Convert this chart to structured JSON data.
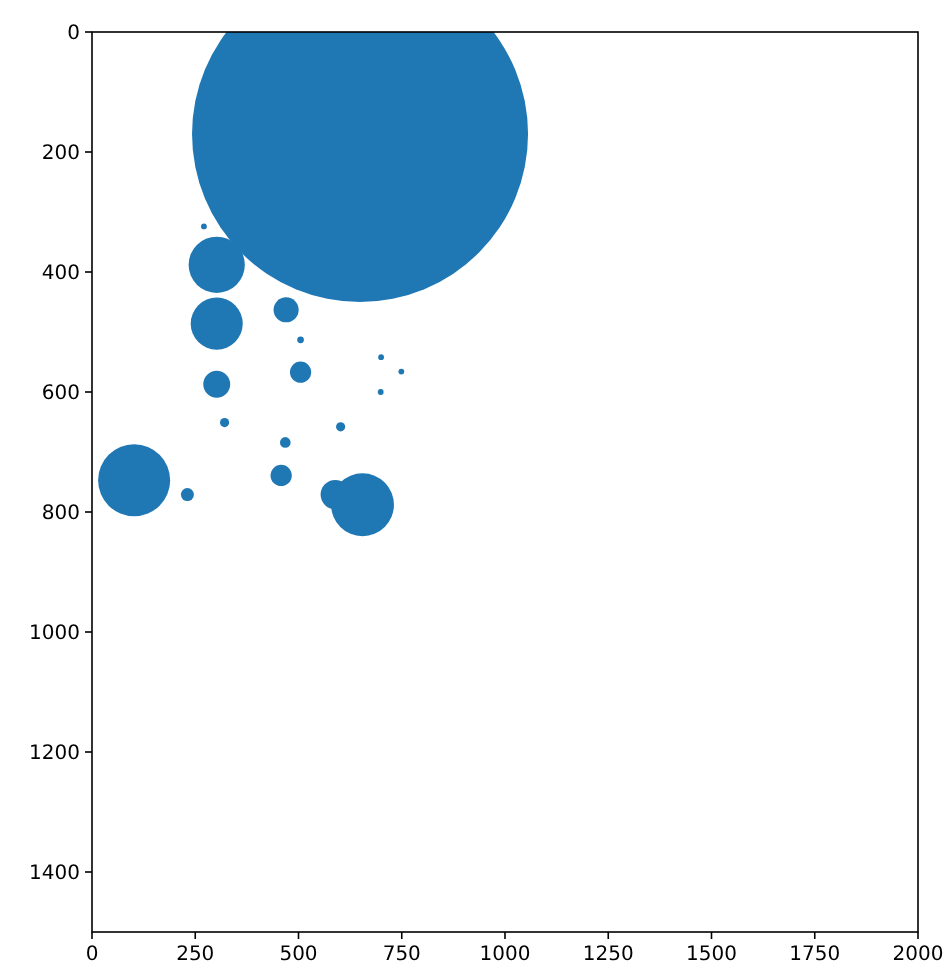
{
  "chart_data": {
    "type": "bubble",
    "x": [
      649,
      271,
      302,
      302,
      470,
      505,
      302,
      505,
      700,
      749,
      699,
      321,
      602,
      468,
      102,
      231,
      458,
      589,
      655
    ],
    "values": [
      170,
      324,
      388,
      486,
      463,
      513,
      587,
      567,
      542,
      566,
      600,
      651,
      658,
      684,
      747,
      771,
      739,
      771,
      788
    ],
    "sizes": [
      1,
      0.0003,
      0.028,
      0.024,
      0.0056,
      0.0004,
      0.0064,
      0.004,
      0.0003,
      0.0003,
      0.0003,
      0.00075,
      0.00075,
      0.001,
      0.046,
      0.0015,
      0.004,
      0.0076,
      0.035
    ],
    "color": "#1f77b4",
    "xlim": [
      0,
      2000
    ],
    "ylim": [
      1500,
      0
    ],
    "xticks": [
      0,
      250,
      500,
      750,
      1000,
      1250,
      1500,
      1750,
      2000
    ],
    "yticks": [
      0,
      200,
      400,
      600,
      800,
      1000,
      1200,
      1400
    ],
    "grid": false
  }
}
